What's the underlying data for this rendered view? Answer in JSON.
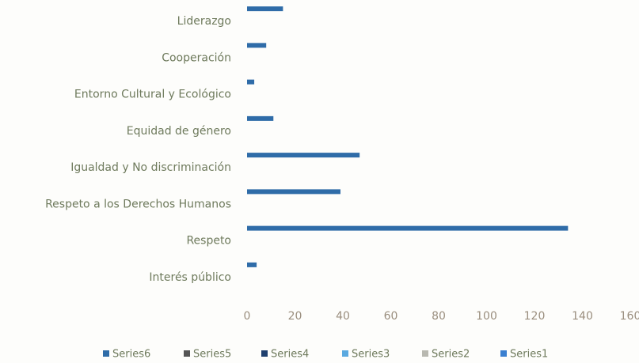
{
  "chart_data": {
    "type": "bar",
    "orientation": "horizontal",
    "categories": [
      "Liderazgo",
      "Cooperación",
      "Entorno Cultural y Ecológico",
      "Equidad de género",
      "Igualdad y No discriminación",
      "Respeto a los Derechos Humanos",
      "Respeto",
      "Interés público"
    ],
    "series": [
      {
        "name": "Series6",
        "color": "#2f6ca8",
        "values": [
          15,
          8,
          3,
          11,
          47,
          39,
          134,
          4
        ]
      },
      {
        "name": "Series5",
        "color": "#555555",
        "values": [
          null,
          null,
          null,
          null,
          null,
          null,
          null,
          null
        ]
      },
      {
        "name": "Series4",
        "color": "#1f3f6e",
        "values": [
          null,
          null,
          null,
          null,
          null,
          null,
          null,
          null
        ]
      },
      {
        "name": "Series3",
        "color": "#5aa9e0",
        "values": [
          null,
          null,
          null,
          null,
          null,
          null,
          null,
          null
        ]
      },
      {
        "name": "Series2",
        "color": "#b8b8b0",
        "values": [
          null,
          null,
          null,
          null,
          null,
          null,
          null,
          null
        ]
      },
      {
        "name": "Series1",
        "color": "#3a7fd0",
        "values": [
          null,
          null,
          null,
          null,
          null,
          null,
          null,
          null
        ]
      }
    ],
    "xlim": [
      0,
      160
    ],
    "xticks": [
      0,
      20,
      40,
      60,
      80,
      100,
      120,
      140,
      160
    ]
  }
}
